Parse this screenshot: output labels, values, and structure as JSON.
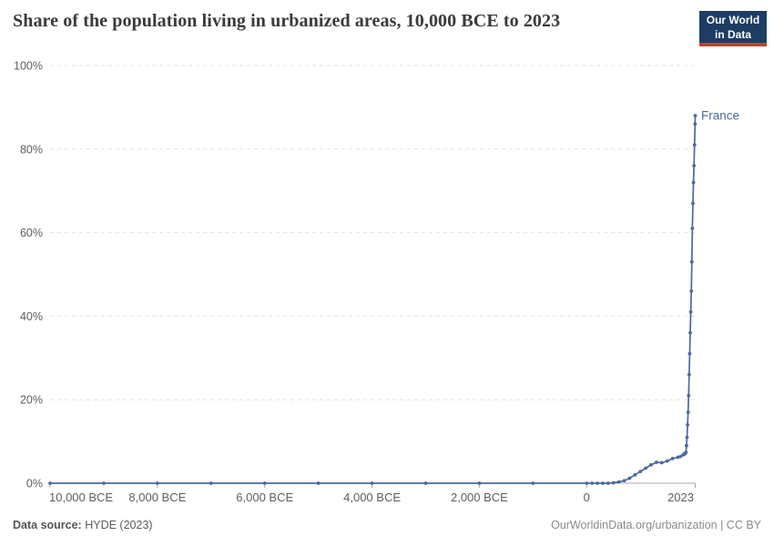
{
  "header": {
    "title": "Share of the population living in urbanized areas, 10,000 BCE to 2023",
    "logo": {
      "line1": "Our World",
      "line2": "in Data",
      "bg_color": "#1d3d63",
      "accent_color": "#c53d33"
    }
  },
  "chart_data": {
    "type": "line",
    "title": "Share of the population living in urbanized areas, 10,000 BCE to 2023",
    "xlabel": "",
    "ylabel": "",
    "xlim": [
      -10000,
      2023
    ],
    "ylim": [
      0,
      100
    ],
    "grid": "horizontal-dashed",
    "legend_position": "end-of-line",
    "line_color": "#4c6a9c",
    "axis_color": "#a8a8a8",
    "grid_color": "#e2e2e2",
    "tick_label_color": "#5e5e5e",
    "x_ticks": [
      {
        "year": -10000,
        "label": "10,000 BCE"
      },
      {
        "year": -8000,
        "label": "8,000 BCE"
      },
      {
        "year": -6000,
        "label": "6,000 BCE"
      },
      {
        "year": -4000,
        "label": "4,000 BCE"
      },
      {
        "year": -2000,
        "label": "2,000 BCE"
      },
      {
        "year": 0,
        "label": "0"
      },
      {
        "year": 2023,
        "label": "2023"
      }
    ],
    "y_ticks": [
      {
        "value": 0,
        "label": "0%"
      },
      {
        "value": 20,
        "label": "20%"
      },
      {
        "value": 40,
        "label": "40%"
      },
      {
        "value": 60,
        "label": "60%"
      },
      {
        "value": 80,
        "label": "80%"
      },
      {
        "value": 100,
        "label": "100%"
      }
    ],
    "series": [
      {
        "name": "France",
        "color": "#4c6a9c",
        "points": [
          [
            -10000,
            0
          ],
          [
            -9000,
            0
          ],
          [
            -8000,
            0
          ],
          [
            -7000,
            0
          ],
          [
            -6000,
            0
          ],
          [
            -5000,
            0
          ],
          [
            -4000,
            0
          ],
          [
            -3000,
            0
          ],
          [
            -2000,
            0
          ],
          [
            -1000,
            0
          ],
          [
            0,
            0
          ],
          [
            100,
            0
          ],
          [
            200,
            0
          ],
          [
            300,
            0
          ],
          [
            400,
            0
          ],
          [
            500,
            0.1
          ],
          [
            600,
            0.3
          ],
          [
            700,
            0.6
          ],
          [
            800,
            1.2
          ],
          [
            900,
            2.0
          ],
          [
            1000,
            2.8
          ],
          [
            1100,
            3.6
          ],
          [
            1200,
            4.4
          ],
          [
            1300,
            5.0
          ],
          [
            1400,
            4.9
          ],
          [
            1500,
            5.3
          ],
          [
            1600,
            5.9
          ],
          [
            1700,
            6.2
          ],
          [
            1750,
            6.4
          ],
          [
            1800,
            6.8
          ],
          [
            1810,
            6.9
          ],
          [
            1820,
            7.0
          ],
          [
            1830,
            7.1
          ],
          [
            1840,
            7.2
          ],
          [
            1850,
            7.4
          ],
          [
            1860,
            9
          ],
          [
            1870,
            11
          ],
          [
            1880,
            14
          ],
          [
            1890,
            17
          ],
          [
            1900,
            21
          ],
          [
            1910,
            26
          ],
          [
            1920,
            31
          ],
          [
            1930,
            36
          ],
          [
            1940,
            41
          ],
          [
            1950,
            46
          ],
          [
            1960,
            53
          ],
          [
            1970,
            61
          ],
          [
            1980,
            67
          ],
          [
            1990,
            72
          ],
          [
            2000,
            76
          ],
          [
            2010,
            81
          ],
          [
            2020,
            86
          ],
          [
            2023,
            88
          ]
        ]
      }
    ],
    "entity_label": "France"
  },
  "footer": {
    "source_label": "Data source:",
    "source_value": "HYDE (2023)",
    "right_text": "OurWorldinData.org/urbanization | CC BY"
  }
}
